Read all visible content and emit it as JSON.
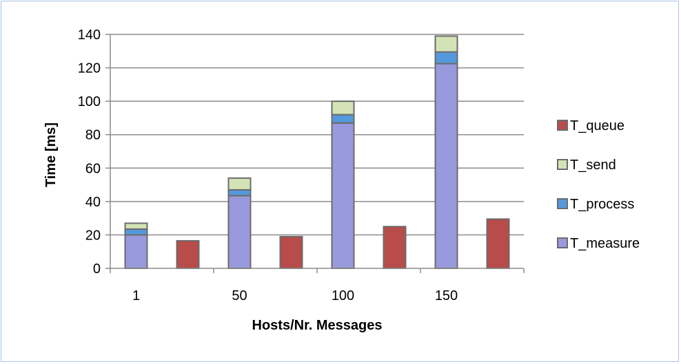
{
  "chart_data": {
    "type": "bar",
    "stacked": true,
    "categories": [
      "1",
      "50",
      "100",
      "150"
    ],
    "xlabel": "Hosts/Nr. Messages",
    "ylabel": "Time [ms]",
    "ylim": [
      0,
      140
    ],
    "yticks": [
      0,
      20,
      40,
      60,
      80,
      100,
      120,
      140
    ],
    "grid": true,
    "legend_position": "right",
    "colors": {
      "T_measure": "#9999dd",
      "T_process": "#5599dd",
      "T_send": "#d4e3b5",
      "T_queue": "#b84c4a"
    },
    "stacked_series": [
      {
        "name": "T_measure",
        "values": [
          20,
          43.5,
          87,
          122.5
        ]
      },
      {
        "name": "T_process",
        "values": [
          3.5,
          3.5,
          5,
          7
        ]
      },
      {
        "name": "T_send",
        "values": [
          3.5,
          7,
          8,
          9.5
        ]
      }
    ],
    "side_series": {
      "name": "T_queue",
      "values": [
        16.5,
        19,
        25,
        29.5
      ]
    },
    "legend": [
      "T_queue",
      "T_send",
      "T_process",
      "T_measure"
    ]
  }
}
